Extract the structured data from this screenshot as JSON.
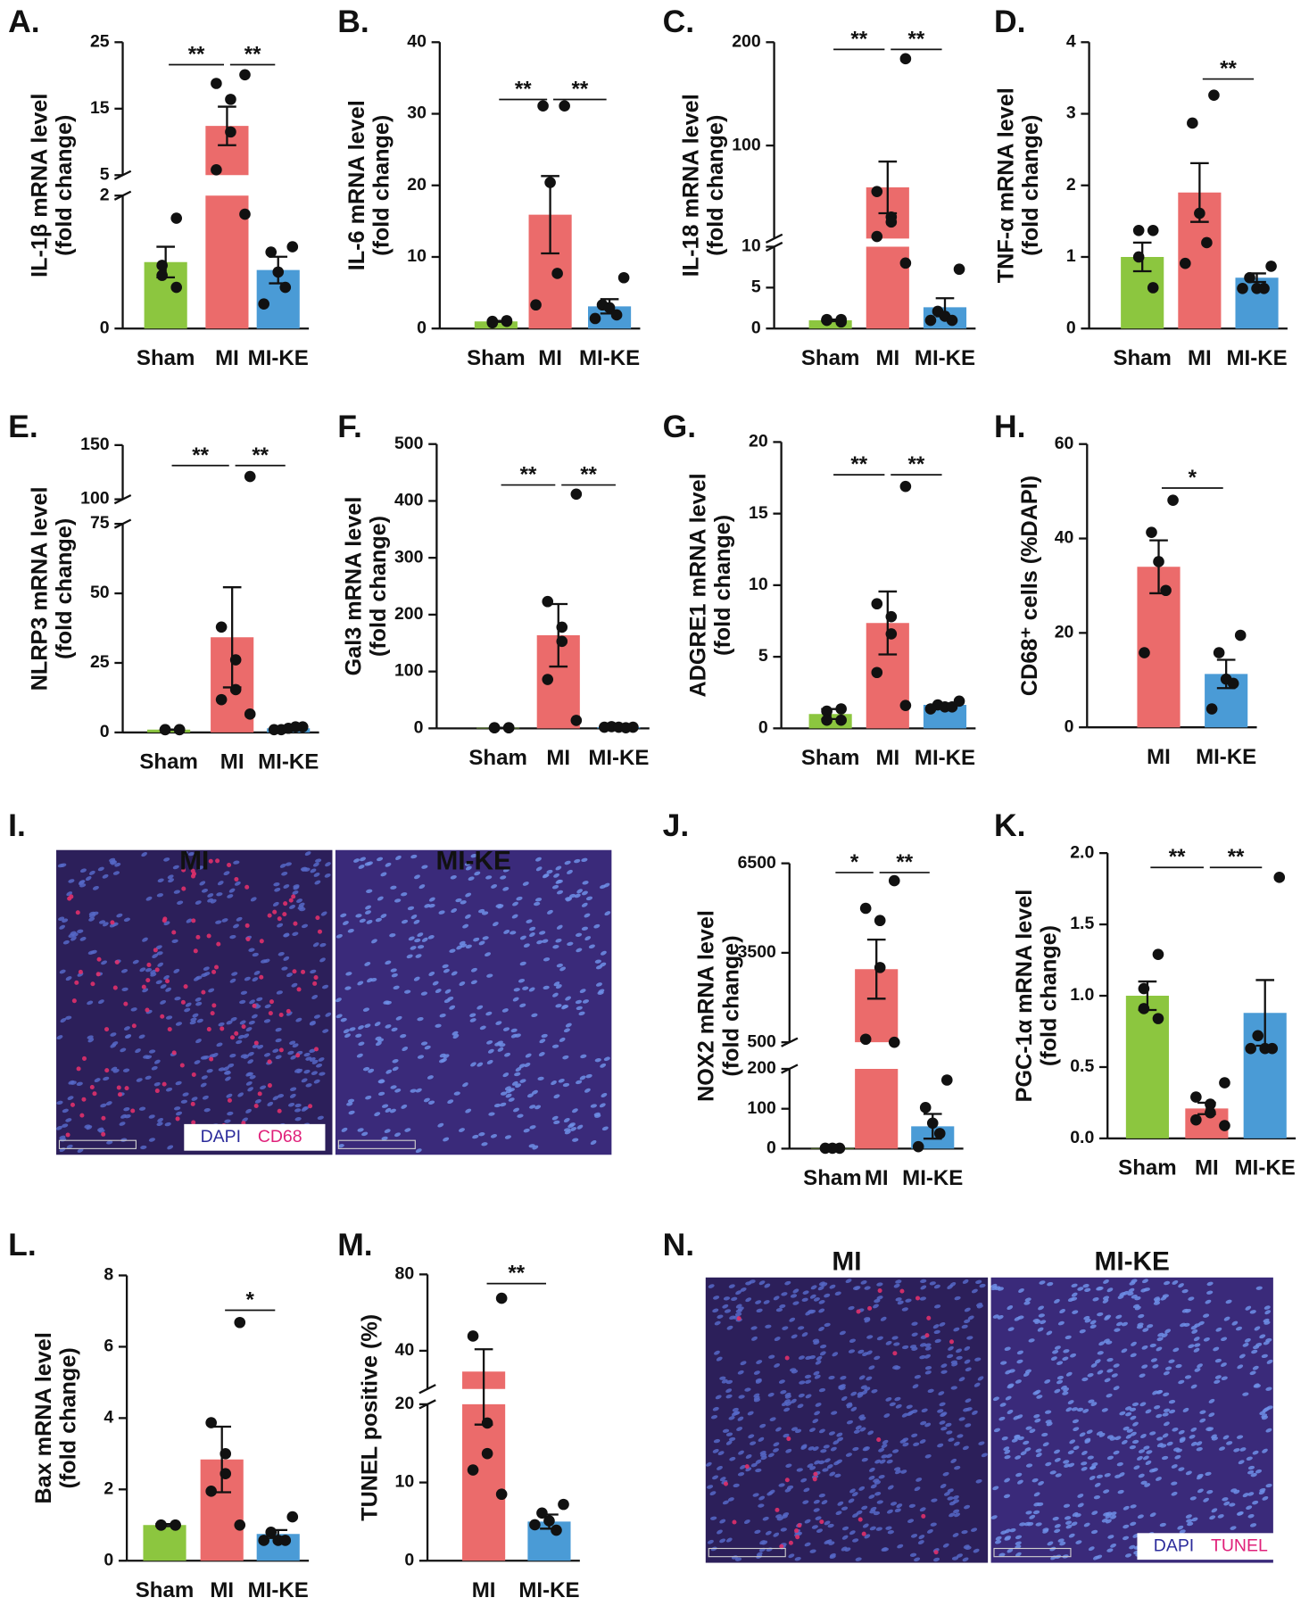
{
  "chart_data": [
    {
      "type": "bar",
      "panel": "A.",
      "ylabel": [
        "IL-1β mRNA level",
        "(fold change)"
      ],
      "categories": [
        "Sham",
        "MI",
        "MI-KE"
      ],
      "colors": [
        "#8cc63f",
        "#eb6b6b",
        "#4a9bd6"
      ],
      "values": [
        1.0,
        12.4,
        0.88
      ],
      "errors": [
        0.23,
        2.9,
        0.2
      ],
      "points": [
        [
          1.66,
          0.95,
          0.8,
          0.62
        ],
        [
          20.1,
          18.8,
          16.4,
          11.5,
          5.8,
          1.72
        ],
        [
          1.23,
          1.15,
          0.85,
          0.62,
          0.37
        ]
      ],
      "ylim": [
        0,
        25
      ],
      "yticks": [
        0,
        2,
        5,
        15,
        25
      ],
      "ybreak": [
        2,
        5
      ],
      "significance": [
        {
          "pair": [
            "Sham",
            "MI"
          ],
          "label": "**"
        },
        {
          "pair": [
            "MI",
            "MI-KE"
          ],
          "label": "**"
        }
      ]
    },
    {
      "type": "bar",
      "panel": "B.",
      "ylabel": [
        "IL-6 mRNA level",
        "(fold change)"
      ],
      "categories": [
        "Sham",
        "MI",
        "MI-KE"
      ],
      "colors": [
        "#8cc63f",
        "#eb6b6b",
        "#4a9bd6"
      ],
      "values": [
        1.0,
        15.9,
        3.1
      ],
      "errors": [
        0.07,
        5.4,
        1.0
      ],
      "points": [
        [
          1.0,
          0.8,
          1.0,
          1.1
        ],
        [
          31.1,
          31.1,
          20.4,
          7.7,
          3.3
        ],
        [
          7.1,
          3.3,
          2.9,
          1.9,
          1.4
        ]
      ],
      "ylim": [
        0,
        40
      ],
      "yticks": [
        0,
        10,
        20,
        30,
        40
      ],
      "significance": [
        {
          "pair": [
            "Sham",
            "MI"
          ],
          "label": "**"
        },
        {
          "pair": [
            "MI",
            "MI-KE"
          ],
          "label": "**"
        }
      ]
    },
    {
      "type": "bar",
      "panel": "C.",
      "ylabel": [
        "IL-18 mRNA level",
        "(fold change)"
      ],
      "categories": [
        "Sham",
        "MI",
        "MI-KE"
      ],
      "colors": [
        "#8cc63f",
        "#eb6b6b",
        "#4a9bd6"
      ],
      "values": [
        1.0,
        59.5,
        2.6
      ],
      "errors": [
        0.1,
        25,
        1.1
      ],
      "points": [
        [
          0.8,
          1.0,
          1.1,
          1.1
        ],
        [
          184,
          55.5,
          30.8,
          26,
          12,
          8.0
        ],
        [
          7.25,
          2.1,
          1.5,
          1.0,
          1.0
        ]
      ],
      "ylim": [
        0,
        200
      ],
      "yticks": [
        0,
        5,
        10,
        100,
        200
      ],
      "ybreak": [
        10,
        10
      ],
      "significance": [
        {
          "pair": [
            "Sham",
            "MI"
          ],
          "label": "**"
        },
        {
          "pair": [
            "MI",
            "MI-KE"
          ],
          "label": "**"
        }
      ]
    },
    {
      "type": "bar",
      "panel": "D.",
      "ylabel": [
        "TNF-α mRNA level",
        "(fold change)"
      ],
      "categories": [
        "Sham",
        "MI",
        "MI-KE"
      ],
      "colors": [
        "#8cc63f",
        "#eb6b6b",
        "#4a9bd6"
      ],
      "values": [
        1.0,
        1.9,
        0.71
      ],
      "errors": [
        0.2,
        0.41,
        0.06
      ],
      "points": [
        [
          1.37,
          1.37,
          1.0,
          0.57
        ],
        [
          3.26,
          2.87,
          1.61,
          1.2,
          0.91
        ],
        [
          0.87,
          0.71,
          0.56,
          0.56,
          0.56
        ]
      ],
      "ylim": [
        0,
        4
      ],
      "yticks": [
        0,
        1,
        2,
        3,
        4
      ],
      "significance": [
        {
          "pair": [
            "MI",
            "MI-KE"
          ],
          "label": "**"
        }
      ]
    },
    {
      "type": "bar",
      "panel": "E.",
      "ylabel": [
        "NLRP3 mRNA level",
        "(fold change)"
      ],
      "categories": [
        "Sham",
        "MI",
        "MI-KE"
      ],
      "colors": [
        "#8cc63f",
        "#eb6b6b",
        "#4a9bd6"
      ],
      "values": [
        1.0,
        34.2,
        1.5
      ],
      "errors": [
        0.05,
        18,
        0.2
      ],
      "points": [
        [
          1,
          1,
          1,
          1
        ],
        [
          121,
          37.9,
          26.1,
          15.4,
          11.8,
          6.6
        ],
        [
          2,
          1,
          1.5,
          2,
          1
        ]
      ],
      "ylim": [
        0,
        150
      ],
      "yticks": [
        0,
        25,
        50,
        75,
        100,
        150
      ],
      "ybreak": [
        75,
        100
      ],
      "significance": [
        {
          "pair": [
            "Sham",
            "MI"
          ],
          "label": "**"
        },
        {
          "pair": [
            "MI",
            "MI-KE"
          ],
          "label": "**"
        }
      ]
    },
    {
      "type": "bar",
      "panel": "F.",
      "ylabel": [
        "Gal3 mRNA level",
        "(fold change)"
      ],
      "categories": [
        "Sham",
        "MI",
        "MI-KE"
      ],
      "colors": [
        "#8cc63f",
        "#eb6b6b",
        "#4a9bd6"
      ],
      "values": [
        1.0,
        163.7,
        2.0
      ],
      "errors": [
        0.1,
        55,
        0.5
      ],
      "points": [
        [
          1,
          1,
          1,
          1
        ],
        [
          412,
          223,
          178,
          153,
          86,
          14
        ],
        [
          2,
          3,
          2,
          1,
          2
        ]
      ],
      "ylim": [
        0,
        500
      ],
      "yticks": [
        0,
        100,
        200,
        300,
        400,
        500
      ],
      "significance": [
        {
          "pair": [
            "Sham",
            "MI"
          ],
          "label": "**"
        },
        {
          "pair": [
            "MI",
            "MI-KE"
          ],
          "label": "**"
        }
      ]
    },
    {
      "type": "bar",
      "panel": "G.",
      "ylabel": [
        "ADGRE1 mRNA level",
        "(fold change)"
      ],
      "categories": [
        "Sham",
        "MI",
        "MI-KE"
      ],
      "colors": [
        "#8cc63f",
        "#eb6b6b",
        "#4a9bd6"
      ],
      "values": [
        1.0,
        7.36,
        1.64
      ],
      "errors": [
        0.35,
        2.2,
        0.1
      ],
      "points": [
        [
          1.36,
          1.2,
          0.57,
          0.57
        ],
        [
          16.9,
          8.7,
          7.8,
          6.6,
          3.9,
          1.6
        ],
        [
          1.9,
          1.64,
          1.5,
          1.5,
          1.36
        ]
      ],
      "ylim": [
        0,
        20
      ],
      "yticks": [
        0,
        5,
        10,
        15,
        20
      ],
      "significance": [
        {
          "pair": [
            "Sham",
            "MI"
          ],
          "label": "**"
        },
        {
          "pair": [
            "MI",
            "MI-KE"
          ],
          "label": "**"
        }
      ]
    },
    {
      "type": "bar",
      "panel": "H.",
      "ylabel": [
        "CD68⁺ cells (%DAPI)"
      ],
      "categories": [
        "MI",
        "MI-KE"
      ],
      "colors": [
        "#eb6b6b",
        "#4a9bd6"
      ],
      "values": [
        34.0,
        11.3
      ],
      "errors": [
        5.6,
        3.0
      ],
      "points": [
        [
          48.1,
          41.3,
          35.1,
          29,
          15.8
        ],
        [
          19.5,
          15.8,
          10.2,
          9.3,
          3.9
        ]
      ],
      "ylim": [
        0,
        60
      ],
      "yticks": [
        0,
        20,
        40,
        60
      ],
      "significance": [
        {
          "pair": [
            "MI",
            "MI-KE"
          ],
          "label": "*"
        }
      ]
    },
    {
      "type": "bar",
      "panel": "J.",
      "ylabel": [
        "NOX2 mRNA level",
        "(fold change)"
      ],
      "categories": [
        "Sham",
        "MI",
        "MI-KE"
      ],
      "colors": [
        "#8cc63f",
        "#eb6b6b",
        "#4a9bd6"
      ],
      "values": [
        1.0,
        2952,
        56
      ],
      "errors": [
        0.2,
        990,
        31
      ],
      "points": [
        [
          1,
          1,
          1
        ],
        [
          5918,
          4993,
          4582,
          3007,
          603,
          500
        ],
        [
          172,
          103,
          64,
          38,
          5
        ]
      ],
      "ylim": [
        0,
        6500
      ],
      "yticks": [
        0,
        100,
        200,
        500,
        3500,
        6500
      ],
      "ybreak": [
        200,
        500
      ],
      "significance": [
        {
          "pair": [
            "Sham",
            "MI"
          ],
          "label": "*"
        },
        {
          "pair": [
            "MI",
            "MI-KE"
          ],
          "label": "**"
        }
      ]
    },
    {
      "type": "bar",
      "panel": "K.",
      "ylabel": [
        "PGC-1α mRNA level",
        "(fold change)"
      ],
      "categories": [
        "Sham",
        "MI",
        "MI-KE"
      ],
      "colors": [
        "#8cc63f",
        "#eb6b6b",
        "#4a9bd6"
      ],
      "values": [
        1.0,
        0.21,
        0.88
      ],
      "errors": [
        0.1,
        0.04,
        0.23
      ],
      "points": [
        [
          1.29,
          1.05,
          0.91,
          0.84
        ],
        [
          0.39,
          0.29,
          0.24,
          0.18,
          0.13,
          0.09
        ],
        [
          1.83,
          0.72,
          0.63,
          0.63,
          0.63
        ]
      ],
      "ylim": [
        0,
        2
      ],
      "yticks": [
        {
          "value": 0,
          "label": "0.0"
        },
        {
          "value": 0.5,
          "label": "0.5"
        },
        {
          "value": 1,
          "label": "1.0"
        },
        {
          "value": 1.5,
          "label": "1.5"
        },
        {
          "value": 2,
          "label": "2.0"
        }
      ],
      "significance": [
        {
          "pair": [
            "Sham",
            "MI"
          ],
          "label": "**"
        },
        {
          "pair": [
            "MI",
            "MI-KE"
          ],
          "label": "**"
        }
      ]
    },
    {
      "type": "bar",
      "panel": "L.",
      "ylabel": [
        "Bax mRNA level",
        "(fold change)"
      ],
      "categories": [
        "Sham",
        "MI",
        "MI-KE"
      ],
      "colors": [
        "#8cc63f",
        "#eb6b6b",
        "#4a9bd6"
      ],
      "values": [
        1.0,
        2.84,
        0.75
      ],
      "errors": [
        0.03,
        0.92,
        0.11
      ],
      "points": [
        [
          1,
          1,
          1,
          1
        ],
        [
          6.68,
          3.87,
          3.0,
          2.44,
          1.95,
          1.0
        ],
        [
          1.23,
          0.8,
          0.57,
          0.57,
          0.57
        ]
      ],
      "ylim": [
        0,
        8
      ],
      "yticks": [
        0,
        2,
        4,
        6,
        8
      ],
      "significance": [
        {
          "pair": [
            "MI",
            "MI-KE"
          ],
          "label": "*"
        }
      ]
    },
    {
      "type": "bar",
      "panel": "M.",
      "ylabel": [
        "TUNEL positive (%)"
      ],
      "categories": [
        "MI",
        "MI-KE"
      ],
      "colors": [
        "#eb6b6b",
        "#4a9bd6"
      ],
      "values": [
        29.1,
        5.0
      ],
      "errors": [
        11.7,
        0.9
      ],
      "points": [
        [
          67.5,
          47.7,
          17.6,
          13.7,
          11.6,
          8.5
        ],
        [
          7.2,
          6.1,
          5.1,
          3.9,
          4.6
        ]
      ],
      "ylim": [
        0,
        80
      ],
      "yticks": [
        0,
        10,
        20,
        40,
        80
      ],
      "ybreak": [
        20,
        20
      ],
      "significance": [
        {
          "pair": [
            "MI",
            "MI-KE"
          ],
          "label": "**"
        }
      ]
    }
  ],
  "images": [
    {
      "panel": "I.",
      "labels": [
        "MI",
        "MI-KE"
      ],
      "legend": [
        "DAPI",
        "CD68"
      ]
    },
    {
      "panel": "N.",
      "labels": [
        "MI",
        "MI-KE"
      ],
      "legend": [
        "DAPI",
        "TUNEL"
      ]
    }
  ]
}
